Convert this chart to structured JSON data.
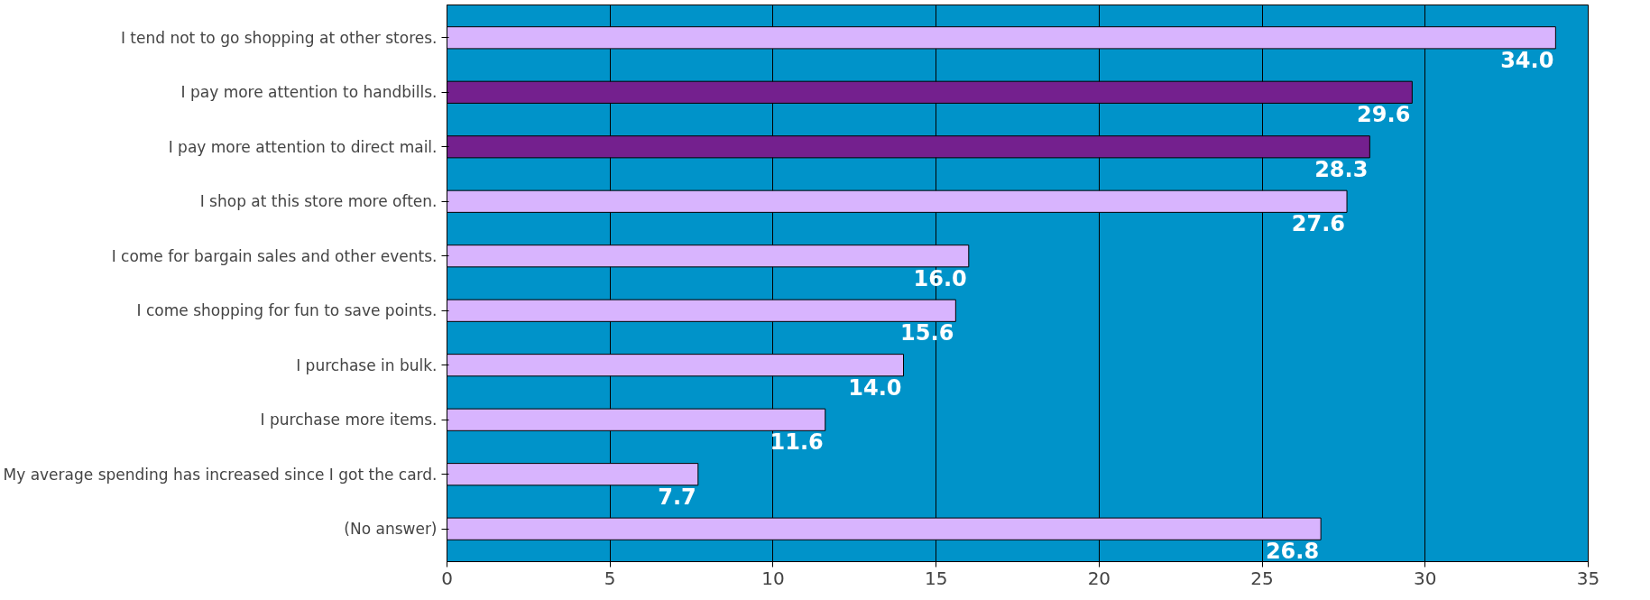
{
  "chart_data": {
    "type": "bar",
    "orientation": "horizontal",
    "categories": [
      "I tend not to go shopping at other stores.",
      "I pay more attention to handbills.",
      "I pay more attention to direct mail.",
      "I shop at this store more often.",
      "I come for bargain sales and other events.",
      "I come shopping for fun to save points.",
      "I purchase in bulk.",
      "I purchase more items.",
      "My average spending has increased since I got the card.",
      "(No answer)"
    ],
    "values": [
      34.0,
      29.6,
      28.3,
      27.6,
      16.0,
      15.6,
      14.0,
      11.6,
      7.7,
      26.8
    ],
    "colors": [
      "#d8b4fe",
      "#74208e",
      "#74208e",
      "#d8b4fe",
      "#d8b4fe",
      "#d8b4fe",
      "#d8b4fe",
      "#d8b4fe",
      "#d8b4fe",
      "#d8b4fe"
    ],
    "xlim": [
      0,
      35
    ],
    "xticks": [
      0,
      5,
      10,
      15,
      20,
      25,
      30,
      35
    ],
    "value_labels": [
      "34.0",
      "29.6",
      "28.3",
      "27.6",
      "16.0",
      "15.6",
      "14.0",
      "11.6",
      "7.7",
      "26.8"
    ],
    "grid": "x"
  }
}
